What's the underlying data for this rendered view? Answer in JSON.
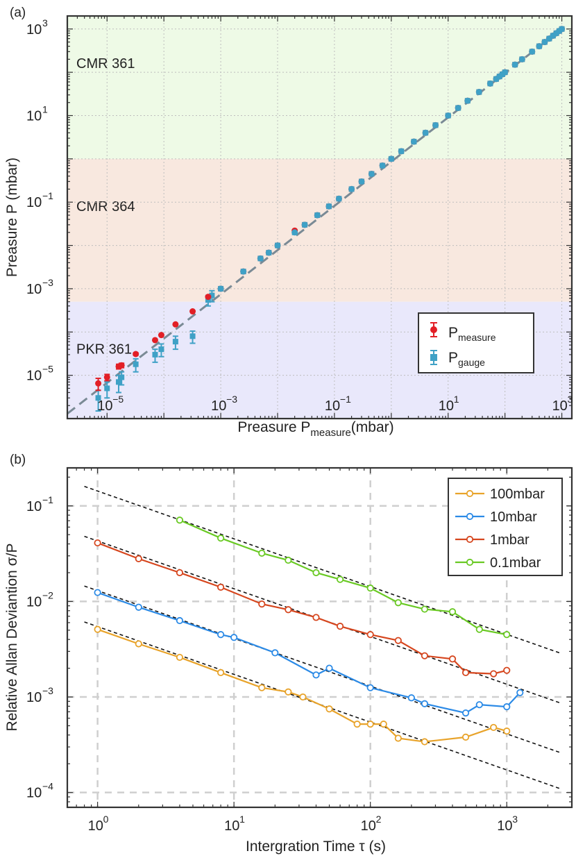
{
  "chart_data": [
    {
      "panel_label": "(a)",
      "type": "scatter",
      "xscale": "log",
      "yscale": "log",
      "xlim": [
        2e-06,
        1500
      ],
      "ylim": [
        1e-06,
        2000
      ],
      "xlabel": "Preasure P",
      "xlabel_sub": "measure",
      "xlabel_unit": "(mbar)",
      "ylabel": "Preasure P (mbar)",
      "xtick_exponents": [
        "-5",
        "-3",
        "-1",
        "1",
        "3"
      ],
      "ytick_exponents": [
        "-5",
        "-3",
        "-1",
        "1",
        "3"
      ],
      "grid": true,
      "regions": [
        {
          "label": "CMR 361",
          "y_range": [
            1,
            2000
          ],
          "color": "#eefae6"
        },
        {
          "label": "CMR 364",
          "y_range": [
            0.0005,
            1
          ],
          "color": "#f8e8df"
        },
        {
          "label": "PKR 361",
          "y_range": [
            1e-06,
            0.0005
          ],
          "color": "#e9e8fb"
        }
      ],
      "reference_line": {
        "style": "dashed",
        "x": [
          2e-06,
          1000
        ],
        "y": [
          1.3e-06,
          1000
        ]
      },
      "legend": {
        "position": "bottom-right",
        "title_prefix": "P",
        "entries": [
          {
            "sub": "measure",
            "color": "#e21f26"
          },
          {
            "sub": "gauge",
            "color": "#3fa1c6"
          }
        ]
      },
      "series": [
        {
          "name": "P_measure",
          "color": "#e21f26",
          "marker": "circle",
          "x": [
            7e-06,
            1e-05,
            1.6e-05,
            1.8e-05,
            3.2e-05,
            7e-05,
            9e-05,
            0.00016,
            0.00032,
            0.0006,
            0.001,
            0.0025,
            0.005,
            0.007,
            0.01,
            0.02,
            0.03,
            0.05,
            0.08,
            0.12,
            0.2,
            0.3,
            0.45,
            0.7,
            1.0,
            1.5,
            2.5,
            4,
            6,
            10,
            15,
            22,
            35,
            55,
            70,
            80,
            90,
            100,
            150,
            200,
            300,
            400,
            500,
            600,
            700,
            800,
            900,
            1000
          ],
          "y": [
            6.5e-06,
            9e-06,
            1.6e-05,
            1.7e-05,
            3.1e-05,
            6.5e-05,
            8.5e-05,
            0.00015,
            0.0003,
            0.00065,
            0.001,
            0.0025,
            0.005,
            0.0068,
            0.01,
            0.022,
            0.03,
            0.05,
            0.08,
            0.12,
            0.2,
            0.3,
            0.45,
            0.7,
            1.0,
            1.5,
            2.5,
            4,
            6,
            10,
            15,
            22,
            35,
            55,
            70,
            80,
            90,
            100,
            150,
            200,
            300,
            400,
            500,
            600,
            700,
            800,
            900,
            1000
          ],
          "yerr": [
            2e-06,
            1.5e-06,
            2e-06,
            2e-06,
            2e-06,
            0,
            0,
            0,
            0,
            0,
            0,
            0,
            0,
            0,
            0,
            0,
            0,
            0,
            0,
            0,
            0,
            0,
            0,
            0,
            0,
            0,
            0,
            0,
            0,
            0,
            0,
            0,
            0,
            0,
            0,
            0,
            0,
            0,
            0,
            0,
            0,
            0,
            0,
            0,
            0,
            0,
            0,
            0
          ]
        },
        {
          "name": "P_gauge",
          "color": "#3fa1c6",
          "marker": "square",
          "x": [
            7e-06,
            1e-05,
            1.6e-05,
            1.8e-05,
            3.2e-05,
            7e-05,
            9e-05,
            0.00016,
            0.00032,
            0.0006,
            0.0007,
            0.001,
            0.0025,
            0.005,
            0.007,
            0.01,
            0.02,
            0.03,
            0.05,
            0.08,
            0.12,
            0.2,
            0.3,
            0.45,
            0.7,
            1.0,
            1.5,
            2.5,
            4,
            6,
            10,
            15,
            22,
            35,
            55,
            70,
            80,
            90,
            100,
            150,
            200,
            300,
            400,
            500,
            600,
            700,
            800,
            900,
            1000
          ],
          "y": [
            3e-06,
            5e-06,
            7e-06,
            9e-06,
            1.8e-05,
            3e-05,
            4e-05,
            6e-05,
            8e-05,
            0.00055,
            0.0007,
            0.001,
            0.0025,
            0.005,
            0.0068,
            0.01,
            0.02,
            0.03,
            0.05,
            0.08,
            0.12,
            0.2,
            0.3,
            0.45,
            0.7,
            1.0,
            1.5,
            2.5,
            4,
            6,
            10,
            15,
            22,
            35,
            55,
            70,
            80,
            90,
            100,
            150,
            200,
            300,
            400,
            500,
            600,
            700,
            800,
            900,
            1000
          ],
          "yerr": [
            1.5e-06,
            2e-06,
            3e-06,
            3e-06,
            6e-06,
            1e-05,
            1.3e-05,
            2e-05,
            2.5e-05,
            0.00015,
            0.0002,
            0,
            0,
            0,
            0,
            0,
            0,
            0,
            0,
            0,
            0,
            0,
            0,
            0,
            0,
            0,
            0,
            0,
            0,
            0,
            0,
            0,
            0,
            0,
            0,
            0,
            0,
            0,
            0,
            0,
            0,
            0,
            0,
            0,
            0,
            0,
            0,
            0,
            0
          ]
        }
      ]
    },
    {
      "panel_label": "(b)",
      "type": "line",
      "xscale": "log",
      "yscale": "log",
      "xlim": [
        0.6,
        3000
      ],
      "ylim": [
        7e-05,
        0.25
      ],
      "xlabel": "Intergration Time τ (s)",
      "ylabel": "Relative Allan Deviantion σ/P",
      "xtick_exponents": [
        "0",
        "1",
        "2",
        "3"
      ],
      "ytick_exponents": [
        "-1",
        "-2",
        "-3",
        "-4"
      ],
      "grid": true,
      "legend": {
        "position": "top-right"
      },
      "series": [
        {
          "name": "100mbar",
          "color": "#e8a32a",
          "x": [
            1,
            2,
            4,
            8,
            16,
            25,
            32,
            50,
            80,
            100,
            125,
            160,
            250,
            500,
            800,
            1000
          ],
          "y": [
            0.0051,
            0.0036,
            0.0026,
            0.0018,
            0.00125,
            0.00113,
            0.001,
            0.00075,
            0.00052,
            0.00052,
            0.00052,
            0.00037,
            0.00034,
            0.00038,
            0.00048,
            0.00044
          ]
        },
        {
          "name": "10mbar",
          "color": "#2b8ae6",
          "x": [
            1,
            2,
            4,
            8,
            10,
            20,
            40,
            50,
            100,
            200,
            250,
            500,
            630,
            1000,
            1250
          ],
          "y": [
            0.0124,
            0.0087,
            0.0063,
            0.0045,
            0.0042,
            0.0029,
            0.0017,
            0.002,
            0.00125,
            0.00098,
            0.00085,
            0.00068,
            0.00083,
            0.00079,
            0.00111
          ]
        },
        {
          "name": "1mbar",
          "color": "#d6461e",
          "x": [
            1,
            2,
            4,
            8,
            16,
            25,
            40,
            60,
            100,
            160,
            250,
            400,
            500,
            800,
            1000
          ],
          "y": [
            0.041,
            0.028,
            0.02,
            0.0141,
            0.0094,
            0.0082,
            0.0068,
            0.0055,
            0.0045,
            0.0039,
            0.0027,
            0.0025,
            0.0018,
            0.00175,
            0.0019
          ]
        },
        {
          "name": "0.1mbar",
          "color": "#69c923",
          "x": [
            4,
            8,
            16,
            25,
            40,
            60,
            100,
            160,
            250,
            400,
            630,
            1000
          ],
          "y": [
            0.071,
            0.046,
            0.032,
            0.027,
            0.02,
            0.017,
            0.0138,
            0.0097,
            0.0083,
            0.0078,
            0.0051,
            0.0045
          ]
        }
      ],
      "fit_lines": [
        {
          "style": "dashed",
          "slope": -0.5,
          "x": [
            0.8,
            2500
          ],
          "y": [
            0.16,
            0.00286
          ]
        },
        {
          "style": "dashed",
          "slope": -0.5,
          "x": [
            0.8,
            2500
          ],
          "y": [
            0.048,
            0.00086
          ]
        },
        {
          "style": "dashed",
          "slope": -0.5,
          "x": [
            0.8,
            2500
          ],
          "y": [
            0.0145,
            0.00026
          ]
        },
        {
          "style": "dashed",
          "slope": -0.5,
          "x": [
            0.8,
            2500
          ],
          "y": [
            0.0061,
            0.000109
          ]
        }
      ]
    }
  ]
}
